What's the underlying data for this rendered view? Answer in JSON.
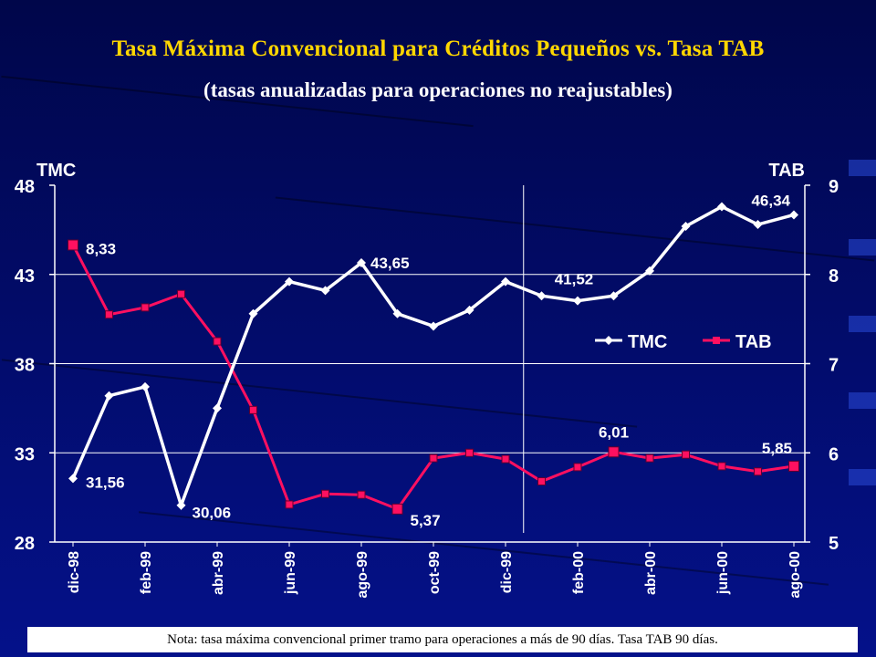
{
  "title": "Tasa Máxima Convencional para Créditos Pequeños vs. Tasa TAB",
  "subtitle": "(tasas anualizadas para operaciones no reajustables)",
  "note": "Nota: tasa máxima convencional primer tramo para operaciones a más de 90 días.  Tasa TAB 90 días.",
  "colors": {
    "tmc": "#ffffff",
    "tab": "#ff1060",
    "title": "#ffd700",
    "background": "#04118a"
  },
  "chart_data": {
    "type": "line",
    "x": [
      "dic-98",
      "ene-99",
      "feb-99",
      "mar-99",
      "abr-99",
      "may-99",
      "jun-99",
      "jul-99",
      "ago-99",
      "sep-99",
      "oct-99",
      "nov-99",
      "dic-99",
      "ene-00",
      "feb-00",
      "mar-00",
      "abr-00",
      "may-00",
      "jun-00",
      "jul-00",
      "ago-00"
    ],
    "tick_labels": [
      "dic-98",
      "feb-99",
      "abr-99",
      "jun-99",
      "ago-99",
      "oct-99",
      "dic-99",
      "feb-00",
      "abr-00",
      "jun-00",
      "ago-00"
    ],
    "y_left_label": "TMC",
    "y_right_label": "TAB",
    "y_left_ticks": [
      "48",
      "43",
      "38",
      "33",
      "28"
    ],
    "y_right_ticks": [
      "9",
      "8",
      "7",
      "6",
      "5"
    ],
    "ylim_left": [
      28,
      48
    ],
    "ylim_right": [
      5,
      9
    ],
    "grid": "horizontal",
    "vertical_divider_after": "dic-99",
    "legend_position": "right-middle",
    "series": [
      {
        "name": "TMC",
        "axis": "left",
        "marker": "diamond",
        "values": [
          31.56,
          36.2,
          36.7,
          30.06,
          35.5,
          40.8,
          42.6,
          42.1,
          43.65,
          40.8,
          40.1,
          41.0,
          42.6,
          41.8,
          41.52,
          41.8,
          43.2,
          45.7,
          46.8,
          45.8,
          46.34
        ]
      },
      {
        "name": "TAB",
        "axis": "right",
        "marker": "square",
        "values": [
          8.33,
          7.55,
          7.63,
          7.78,
          7.25,
          6.48,
          5.42,
          5.54,
          5.53,
          5.37,
          5.94,
          6.0,
          5.93,
          5.68,
          5.84,
          6.01,
          5.94,
          5.98,
          5.85,
          5.79,
          5.85
        ]
      }
    ],
    "data_labels": [
      {
        "series": "TMC",
        "index": 0,
        "text": "31,56"
      },
      {
        "series": "TMC",
        "index": 3,
        "text": "30,06"
      },
      {
        "series": "TMC",
        "index": 8,
        "text": "43,65"
      },
      {
        "series": "TMC",
        "index": 14,
        "text": "41,52"
      },
      {
        "series": "TMC",
        "index": 20,
        "text": "46,34"
      },
      {
        "series": "TAB",
        "index": 0,
        "text": "8,33"
      },
      {
        "series": "TAB",
        "index": 9,
        "text": "5,37"
      },
      {
        "series": "TAB",
        "index": 15,
        "text": "6,01"
      },
      {
        "series": "TAB",
        "index": 20,
        "text": "5,85"
      }
    ],
    "legend": [
      {
        "series": "TMC"
      },
      {
        "series": "TAB"
      }
    ]
  }
}
